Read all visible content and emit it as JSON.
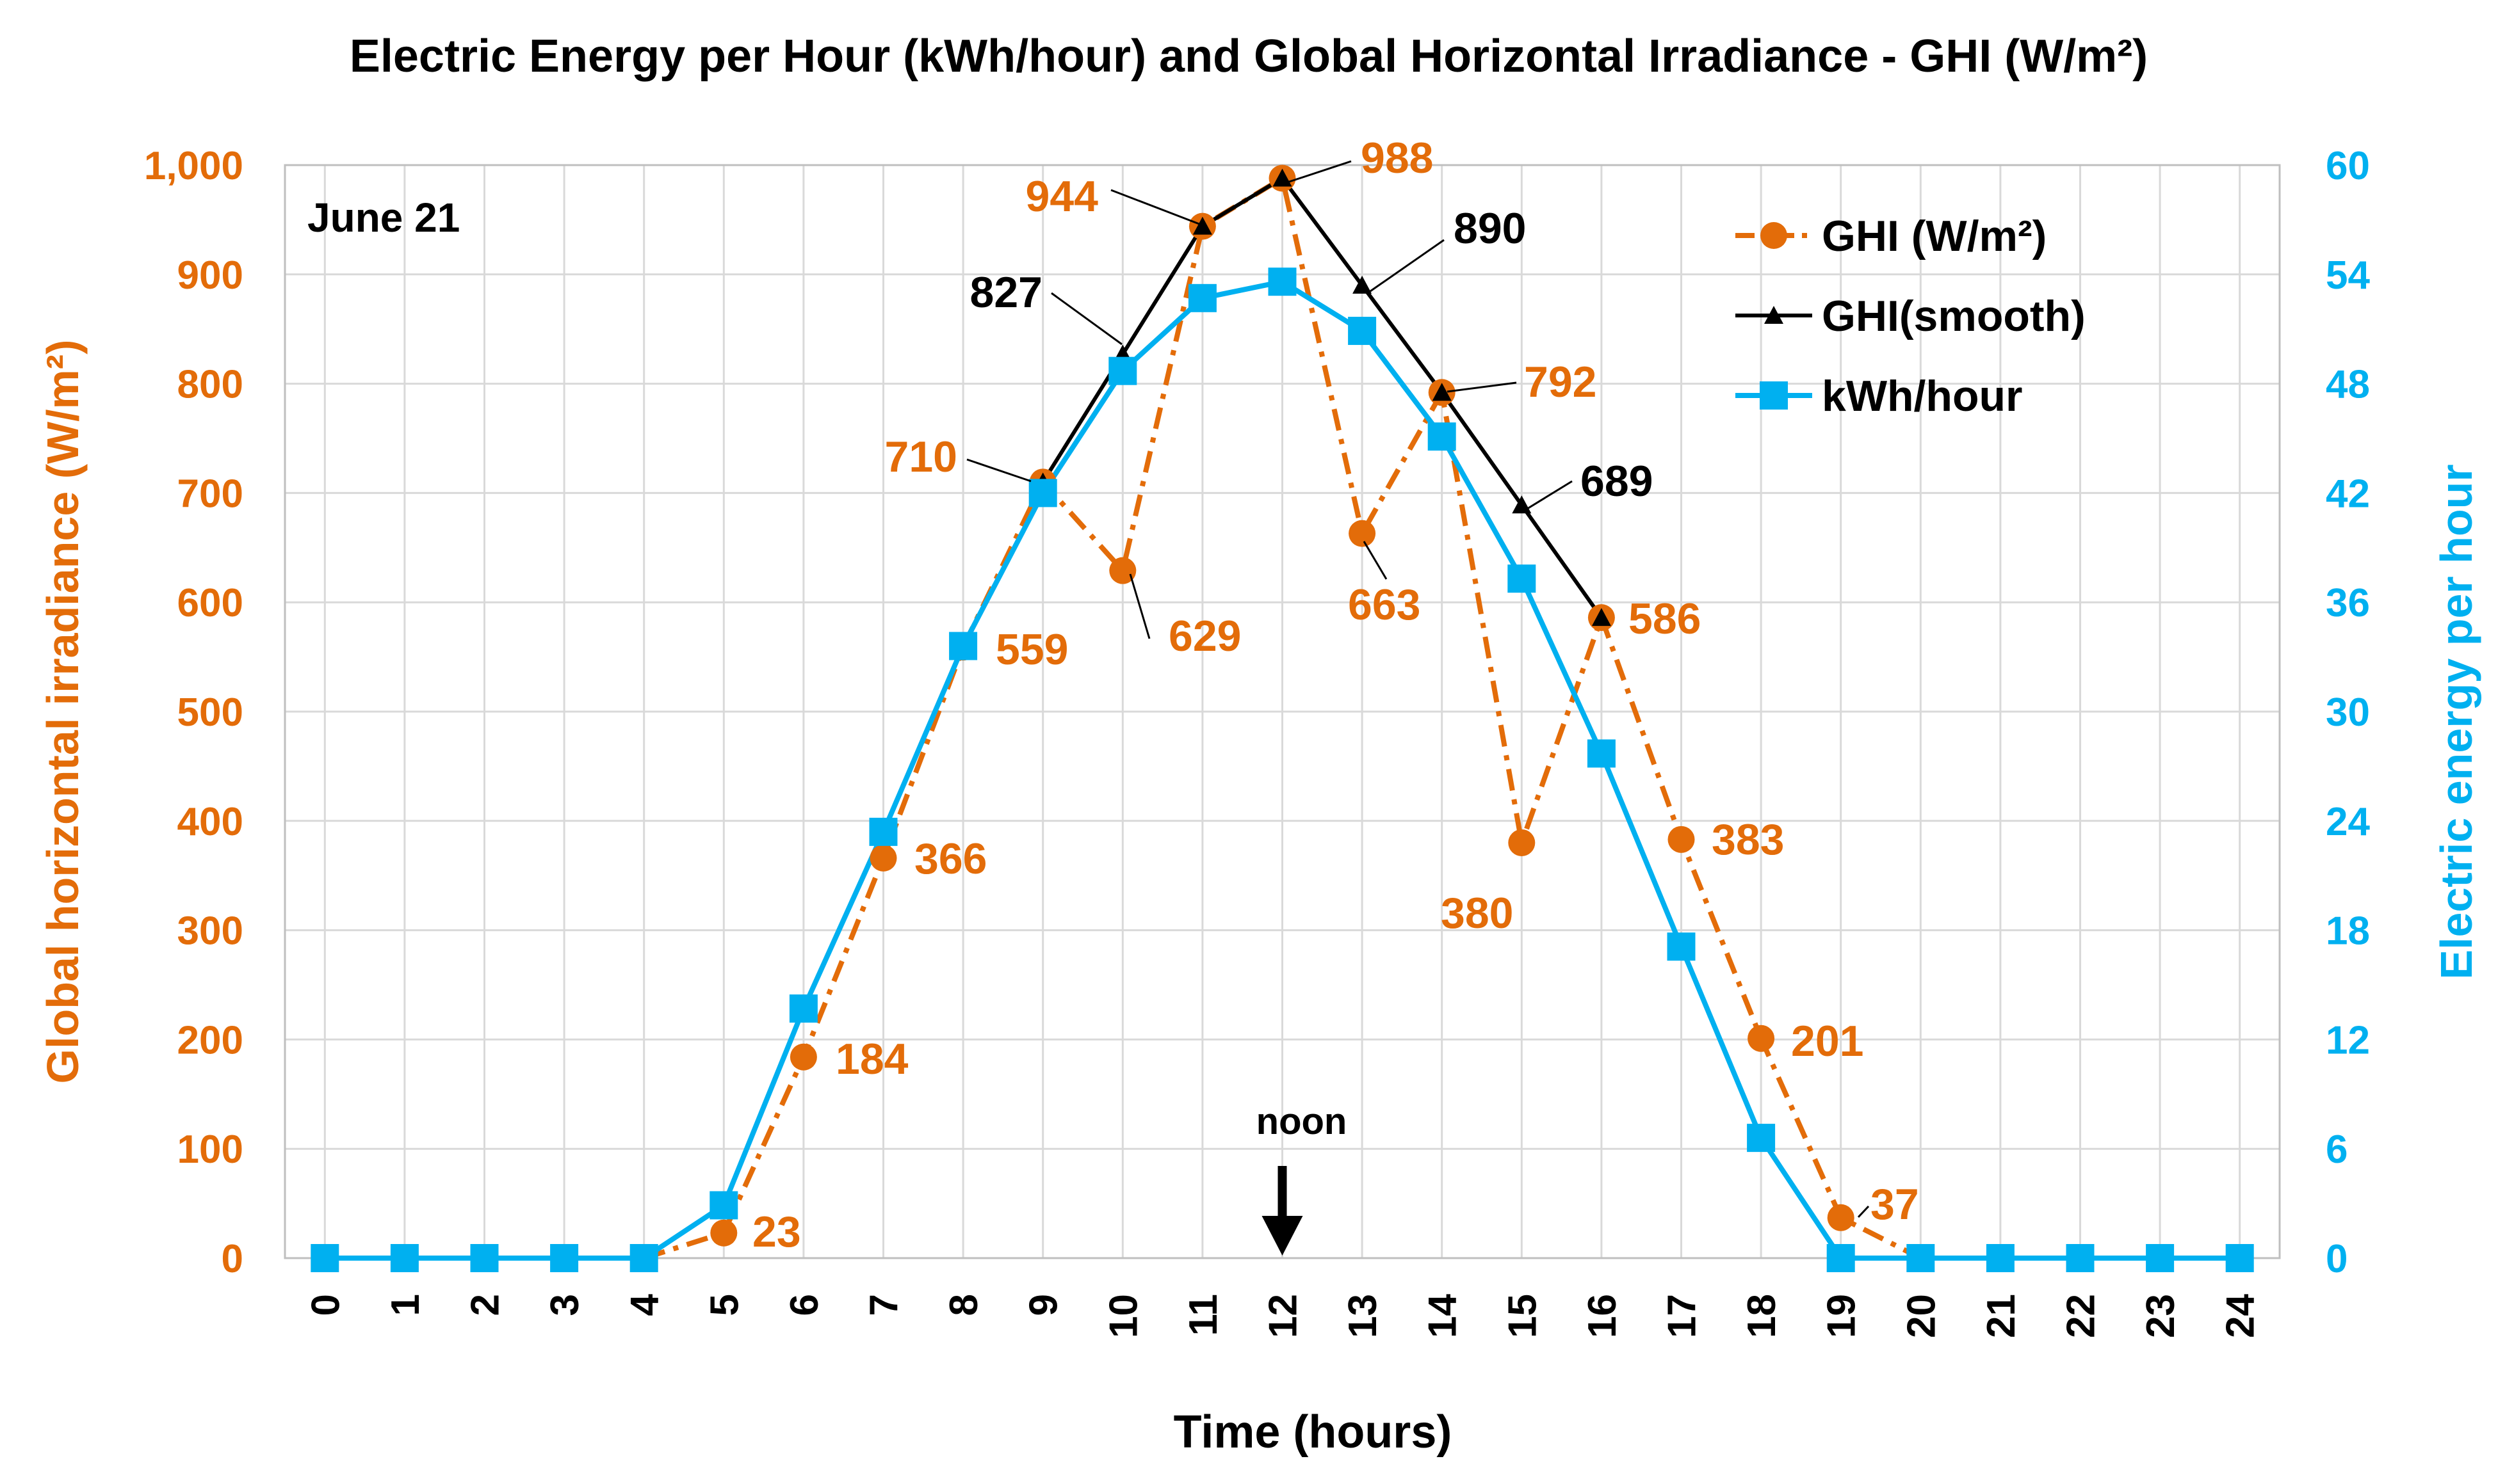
{
  "chart_data": {
    "type": "line",
    "title": "Electric Energy per Hour (kWh/hour) and Global Horizontal Irradiance - GHI (W/m²)",
    "xlabel": "Time (hours)",
    "ylabel_left": "Global horizontal irradiance (W/m²)",
    "ylabel_right": "Electric energy per hour",
    "annotation_date": "June 21",
    "annotation_noon": "noon",
    "noon_hour": 12,
    "x": [
      0,
      1,
      2,
      3,
      4,
      5,
      6,
      7,
      8,
      9,
      10,
      11,
      12,
      13,
      14,
      15,
      16,
      17,
      18,
      19,
      20,
      21,
      22,
      23,
      24
    ],
    "x_tick_labels": [
      "0",
      "1",
      "2",
      "3",
      "4",
      "5",
      "6",
      "7",
      "8",
      "9",
      "10",
      "11",
      "12",
      "13",
      "14",
      "15",
      "16",
      "17",
      "18",
      "19",
      "20",
      "21",
      "22",
      "23",
      "24"
    ],
    "ylim_left": [
      0,
      1000
    ],
    "yticks_left": [
      "0",
      "100",
      "200",
      "300",
      "400",
      "500",
      "600",
      "700",
      "800",
      "900",
      "1,000"
    ],
    "ylim_right": [
      0,
      60
    ],
    "yticks_right": [
      "0",
      "6",
      "12",
      "18",
      "24",
      "30",
      "36",
      "42",
      "48",
      "54",
      "60"
    ],
    "grid": true,
    "legend_position": "top-right",
    "colors": {
      "ghi": "#e36c09",
      "smooth": "#000000",
      "kwh": "#00b0f0",
      "axis_left": "#e36c09",
      "axis_right": "#00b0f0",
      "grid": "#d9d9d9"
    },
    "series": [
      {
        "name": "GHI (W/m²)",
        "axis": "left",
        "x": [
          4,
          5,
          6,
          7,
          8,
          9,
          10,
          11,
          12,
          13,
          14,
          15,
          16,
          17,
          18,
          19,
          20
        ],
        "values": [
          0,
          23,
          184,
          366,
          559,
          710,
          629,
          944,
          988,
          663,
          792,
          380,
          586,
          383,
          201,
          37,
          0
        ],
        "markers_from_index": 1,
        "markers_to_index": 15
      },
      {
        "name": "GHI(smooth)",
        "axis": "left",
        "x": [
          9,
          10,
          11,
          12,
          13,
          14,
          15,
          16
        ],
        "values": [
          710,
          827,
          944,
          988,
          890,
          792,
          689,
          586
        ]
      },
      {
        "name": "kWh/hour",
        "axis": "right",
        "x": [
          0,
          1,
          2,
          3,
          4,
          5,
          6,
          7,
          8,
          9,
          10,
          11,
          12,
          13,
          14,
          15,
          16,
          17,
          18,
          19,
          20,
          21,
          22,
          23,
          24
        ],
        "values": [
          0,
          0,
          0,
          0,
          0,
          2.9,
          13.7,
          23.4,
          33.6,
          42.0,
          48.7,
          52.7,
          53.6,
          50.9,
          45.1,
          37.3,
          27.7,
          17.1,
          6.6,
          0,
          0,
          0,
          0,
          0,
          0
        ]
      }
    ],
    "data_labels": [
      {
        "text": "23",
        "color": "ghi"
      },
      {
        "text": "184",
        "color": "ghi"
      },
      {
        "text": "366",
        "color": "ghi"
      },
      {
        "text": "559",
        "color": "ghi"
      },
      {
        "text": "710",
        "color": "ghi"
      },
      {
        "text": "629",
        "color": "ghi"
      },
      {
        "text": "944",
        "color": "ghi"
      },
      {
        "text": "988",
        "color": "ghi"
      },
      {
        "text": "663",
        "color": "ghi"
      },
      {
        "text": "792",
        "color": "ghi"
      },
      {
        "text": "380",
        "color": "ghi"
      },
      {
        "text": "586",
        "color": "ghi"
      },
      {
        "text": "383",
        "color": "ghi"
      },
      {
        "text": "201",
        "color": "ghi"
      },
      {
        "text": "37",
        "color": "ghi"
      },
      {
        "text": "827",
        "color": "smooth"
      },
      {
        "text": "890",
        "color": "smooth"
      },
      {
        "text": "689",
        "color": "smooth"
      }
    ]
  }
}
